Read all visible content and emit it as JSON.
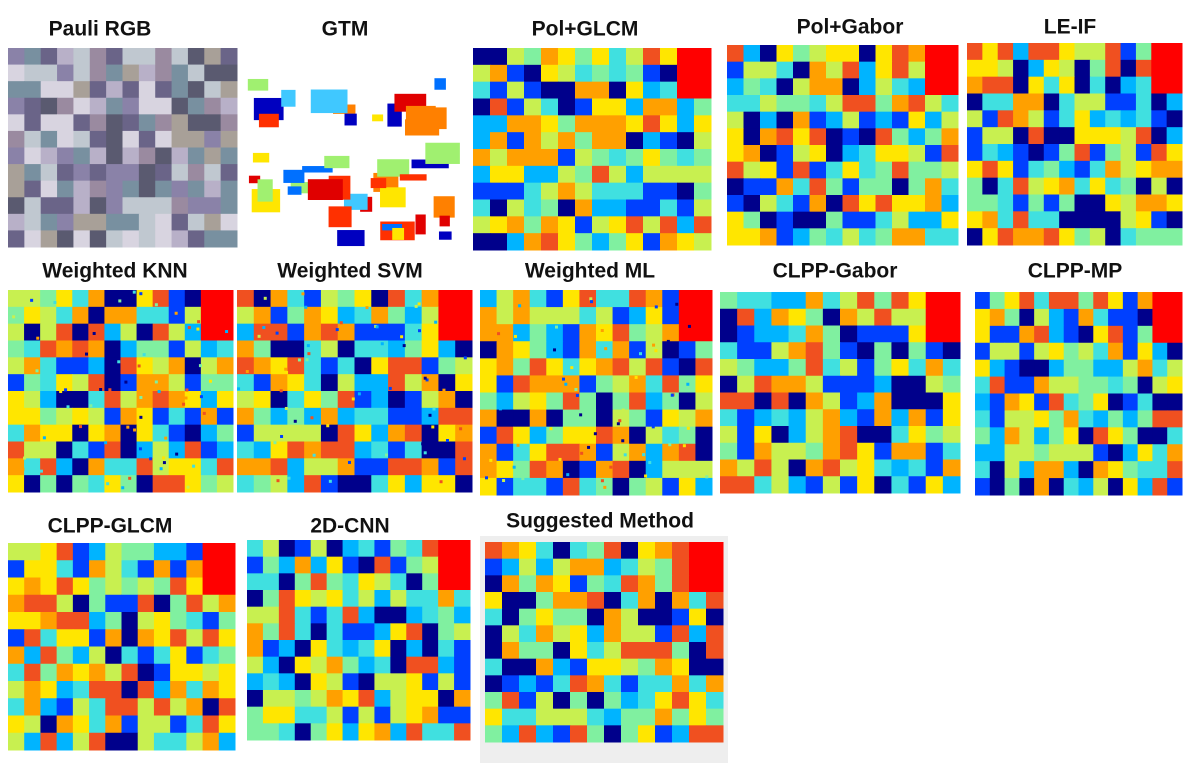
{
  "panels": [
    {
      "title": "Pauli RGB"
    },
    {
      "title": "GTM"
    },
    {
      "title": "Pol+GLCM"
    },
    {
      "title": "Pol+Gabor"
    },
    {
      "title": "LE-IF"
    },
    {
      "title": "Weighted KNN"
    },
    {
      "title": "Weighted SVM"
    },
    {
      "title": "Weighted ML"
    },
    {
      "title": "CLPP-Gabor"
    },
    {
      "title": "CLPP-MP"
    },
    {
      "title": "CLPP-GLCM"
    },
    {
      "title": "2D-CNN"
    },
    {
      "title": "Suggested Method"
    }
  ]
}
